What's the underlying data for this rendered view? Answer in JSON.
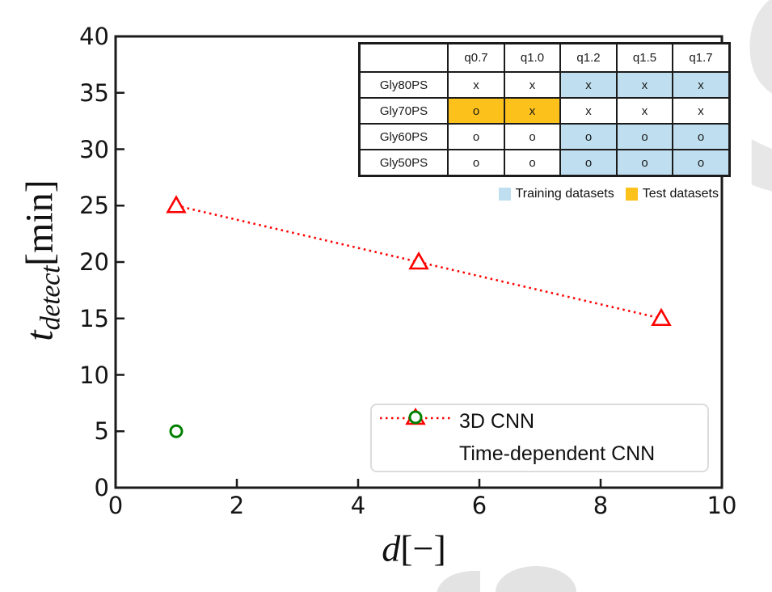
{
  "colors": {
    "frame": "#1b1b1b",
    "series_red": "#ff0000",
    "series_green": "#008000",
    "training_blue": "#bfdff0",
    "test_orange": "#fcc11b",
    "watermark_gray": "#e7e7e7"
  },
  "chart_data": {
    "type": "scatter",
    "title": "",
    "xlabel": "d [-]",
    "ylabel": "t_detect [min]",
    "xlabel_parts": {
      "symbol": "d",
      "unit": "[−]"
    },
    "ylabel_parts": {
      "symbol": "t",
      "subscript": "detect",
      "unit": "[min]"
    },
    "xlim": [
      0,
      10
    ],
    "ylim": [
      0,
      40
    ],
    "xticks": [
      "0",
      "2",
      "4",
      "6",
      "8",
      "10"
    ],
    "yticks": [
      "0",
      "5",
      "10",
      "15",
      "20",
      "25",
      "30",
      "35",
      "40"
    ],
    "xtick_values": [
      0,
      2,
      4,
      6,
      8,
      10
    ],
    "ytick_values": [
      0,
      5,
      10,
      15,
      20,
      25,
      30,
      35,
      40
    ],
    "grid": false,
    "legend_position": "lower right",
    "series": [
      {
        "name": "3D CNN",
        "marker": "triangle",
        "color": "#ff0000",
        "linestyle": "dotted",
        "x": [
          1,
          5,
          9
        ],
        "y": [
          25,
          20,
          15
        ]
      },
      {
        "name": "Time-dependent CNN",
        "marker": "circle",
        "color": "#008000",
        "linestyle": "none",
        "x": [
          1
        ],
        "y": [
          5
        ]
      }
    ]
  },
  "inset_table": {
    "columns": [
      "",
      "q0.7",
      "q1.0",
      "q1.2",
      "q1.5",
      "q1.7"
    ],
    "rows": [
      {
        "label": "Gly80PS",
        "cells": [
          {
            "text": "x",
            "bg": "none"
          },
          {
            "text": "x",
            "bg": "none"
          },
          {
            "text": "x",
            "bg": "training"
          },
          {
            "text": "x",
            "bg": "training"
          },
          {
            "text": "x",
            "bg": "training"
          }
        ]
      },
      {
        "label": "Gly70PS",
        "cells": [
          {
            "text": "o",
            "bg": "test"
          },
          {
            "text": "x",
            "bg": "test"
          },
          {
            "text": "x",
            "bg": "none"
          },
          {
            "text": "x",
            "bg": "none"
          },
          {
            "text": "x",
            "bg": "none"
          }
        ]
      },
      {
        "label": "Gly60PS",
        "cells": [
          {
            "text": "o",
            "bg": "none"
          },
          {
            "text": "o",
            "bg": "none"
          },
          {
            "text": "o",
            "bg": "training"
          },
          {
            "text": "o",
            "bg": "training"
          },
          {
            "text": "o",
            "bg": "training"
          }
        ]
      },
      {
        "label": "Gly50PS",
        "cells": [
          {
            "text": "o",
            "bg": "none"
          },
          {
            "text": "o",
            "bg": "none"
          },
          {
            "text": "o",
            "bg": "training"
          },
          {
            "text": "o",
            "bg": "training"
          },
          {
            "text": "o",
            "bg": "training"
          }
        ]
      }
    ],
    "legend": [
      {
        "label": "Training datasets",
        "color": "#bfdff0"
      },
      {
        "label": "Test datasets",
        "color": "#fcc11b"
      }
    ]
  },
  "watermark": {
    "letter": "S"
  }
}
